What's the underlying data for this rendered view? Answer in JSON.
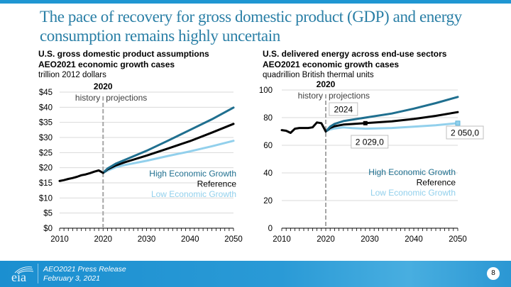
{
  "slide": {
    "title": "The pace of recovery for gross domestic product (GDP) and energy consumption remains highly uncertain",
    "footer": {
      "logo_text": "eia",
      "line1": "AEO2021 Press Release",
      "line2": "February 3, 2021",
      "page_number": "8"
    },
    "colors": {
      "accent": "#1f96d2",
      "title": "#2a7fa6",
      "high": "#1f6f8f",
      "reference": "#000000",
      "low": "#92d0ec"
    }
  },
  "chart_data": [
    {
      "type": "line",
      "title": "U.S. gross domestic product assumptions",
      "subtitle": "AEO2021 economic growth cases",
      "units": "trillion 2012 dollars",
      "xlim": [
        2010,
        2050
      ],
      "ylim": [
        0,
        45
      ],
      "x_ticks": [
        "2010",
        "2020",
        "2030",
        "2040",
        "2050"
      ],
      "y_ticks": [
        "$0",
        "$5",
        "$10",
        "$15",
        "$20",
        "$25",
        "$30",
        "$35",
        "$40",
        "$45"
      ],
      "y_tick_values": [
        0,
        5,
        10,
        15,
        20,
        25,
        30,
        35,
        40,
        45
      ],
      "grid": true,
      "divider": {
        "year": 2020,
        "label": "2020",
        "left": "history",
        "right": "projections"
      },
      "legend": [
        "High Economic Growth",
        "Reference",
        "Low Economic Growth"
      ],
      "legend_position": "center-right",
      "series": [
        {
          "name": "History",
          "x": [
            2010,
            2011,
            2012,
            2013,
            2014,
            2015,
            2016,
            2017,
            2018,
            2019,
            2020
          ],
          "values": [
            15.6,
            15.9,
            16.3,
            16.6,
            17.0,
            17.5,
            17.8,
            18.2,
            18.7,
            19.1,
            18.3
          ]
        },
        {
          "name": "High Economic Growth",
          "x": [
            2020,
            2021,
            2023,
            2025,
            2030,
            2035,
            2040,
            2045,
            2050
          ],
          "values": [
            18.3,
            19.7,
            21.4,
            22.6,
            25.6,
            29.0,
            32.5,
            36.0,
            39.9
          ]
        },
        {
          "name": "Reference",
          "x": [
            2020,
            2021,
            2023,
            2025,
            2030,
            2035,
            2040,
            2045,
            2050
          ],
          "values": [
            18.3,
            19.4,
            20.8,
            21.8,
            24.0,
            26.4,
            28.8,
            31.6,
            34.5
          ]
        },
        {
          "name": "Low Economic Growth",
          "x": [
            2020,
            2021,
            2023,
            2025,
            2030,
            2035,
            2040,
            2045,
            2050
          ],
          "values": [
            18.3,
            19.0,
            20.2,
            20.9,
            22.3,
            23.9,
            25.4,
            27.1,
            28.9
          ]
        }
      ]
    },
    {
      "type": "line",
      "title": "U.S. delivered energy across end-use sectors",
      "subtitle": "AEO2021 economic growth cases",
      "units": "quadrillion British thermal units",
      "xlim": [
        2010,
        2050
      ],
      "ylim": [
        0,
        100
      ],
      "x_ticks": [
        "2010",
        "2020",
        "2030",
        "2040",
        "2050"
      ],
      "y_ticks": [
        "0",
        "20",
        "40",
        "60",
        "80",
        "100"
      ],
      "y_tick_values": [
        0,
        20,
        40,
        60,
        80,
        100
      ],
      "grid": true,
      "divider": {
        "year": 2020,
        "label": "2020",
        "left": "history",
        "right": "projections"
      },
      "annotations": [
        {
          "text": "2024",
          "x": 2024
        },
        {
          "text": "2 029,0",
          "x": 2029
        },
        {
          "text": "2 050,0",
          "x": 2050
        }
      ],
      "legend": [
        "High Economic Growth",
        "Reference",
        "Low Economic Growth"
      ],
      "legend_position": "center-right",
      "series": [
        {
          "name": "History",
          "x": [
            2010,
            2011,
            2012,
            2013,
            2014,
            2015,
            2016,
            2017,
            2018,
            2019,
            2020
          ],
          "values": [
            71,
            70.5,
            69,
            72,
            72.5,
            72.5,
            72.5,
            73,
            76.5,
            76,
            70
          ]
        },
        {
          "name": "High Economic Growth",
          "x": [
            2020,
            2021,
            2022,
            2024,
            2026,
            2030,
            2035,
            2040,
            2045,
            2050
          ],
          "values": [
            70,
            73.5,
            75.5,
            77.5,
            78.5,
            80.5,
            83,
            86.5,
            90.5,
            95
          ]
        },
        {
          "name": "Reference",
          "x": [
            2020,
            2021,
            2022,
            2024,
            2026,
            2029,
            2035,
            2040,
            2045,
            2050
          ],
          "values": [
            70,
            72.5,
            73.8,
            75,
            75.4,
            76,
            77.3,
            79,
            81.3,
            84
          ]
        },
        {
          "name": "Low Economic Growth",
          "x": [
            2020,
            2021,
            2022,
            2024,
            2026,
            2029,
            2035,
            2040,
            2045,
            2050
          ],
          "values": [
            70,
            71.5,
            72.2,
            73,
            72.4,
            72,
            72.5,
            73.5,
            74.5,
            76
          ]
        }
      ]
    }
  ]
}
